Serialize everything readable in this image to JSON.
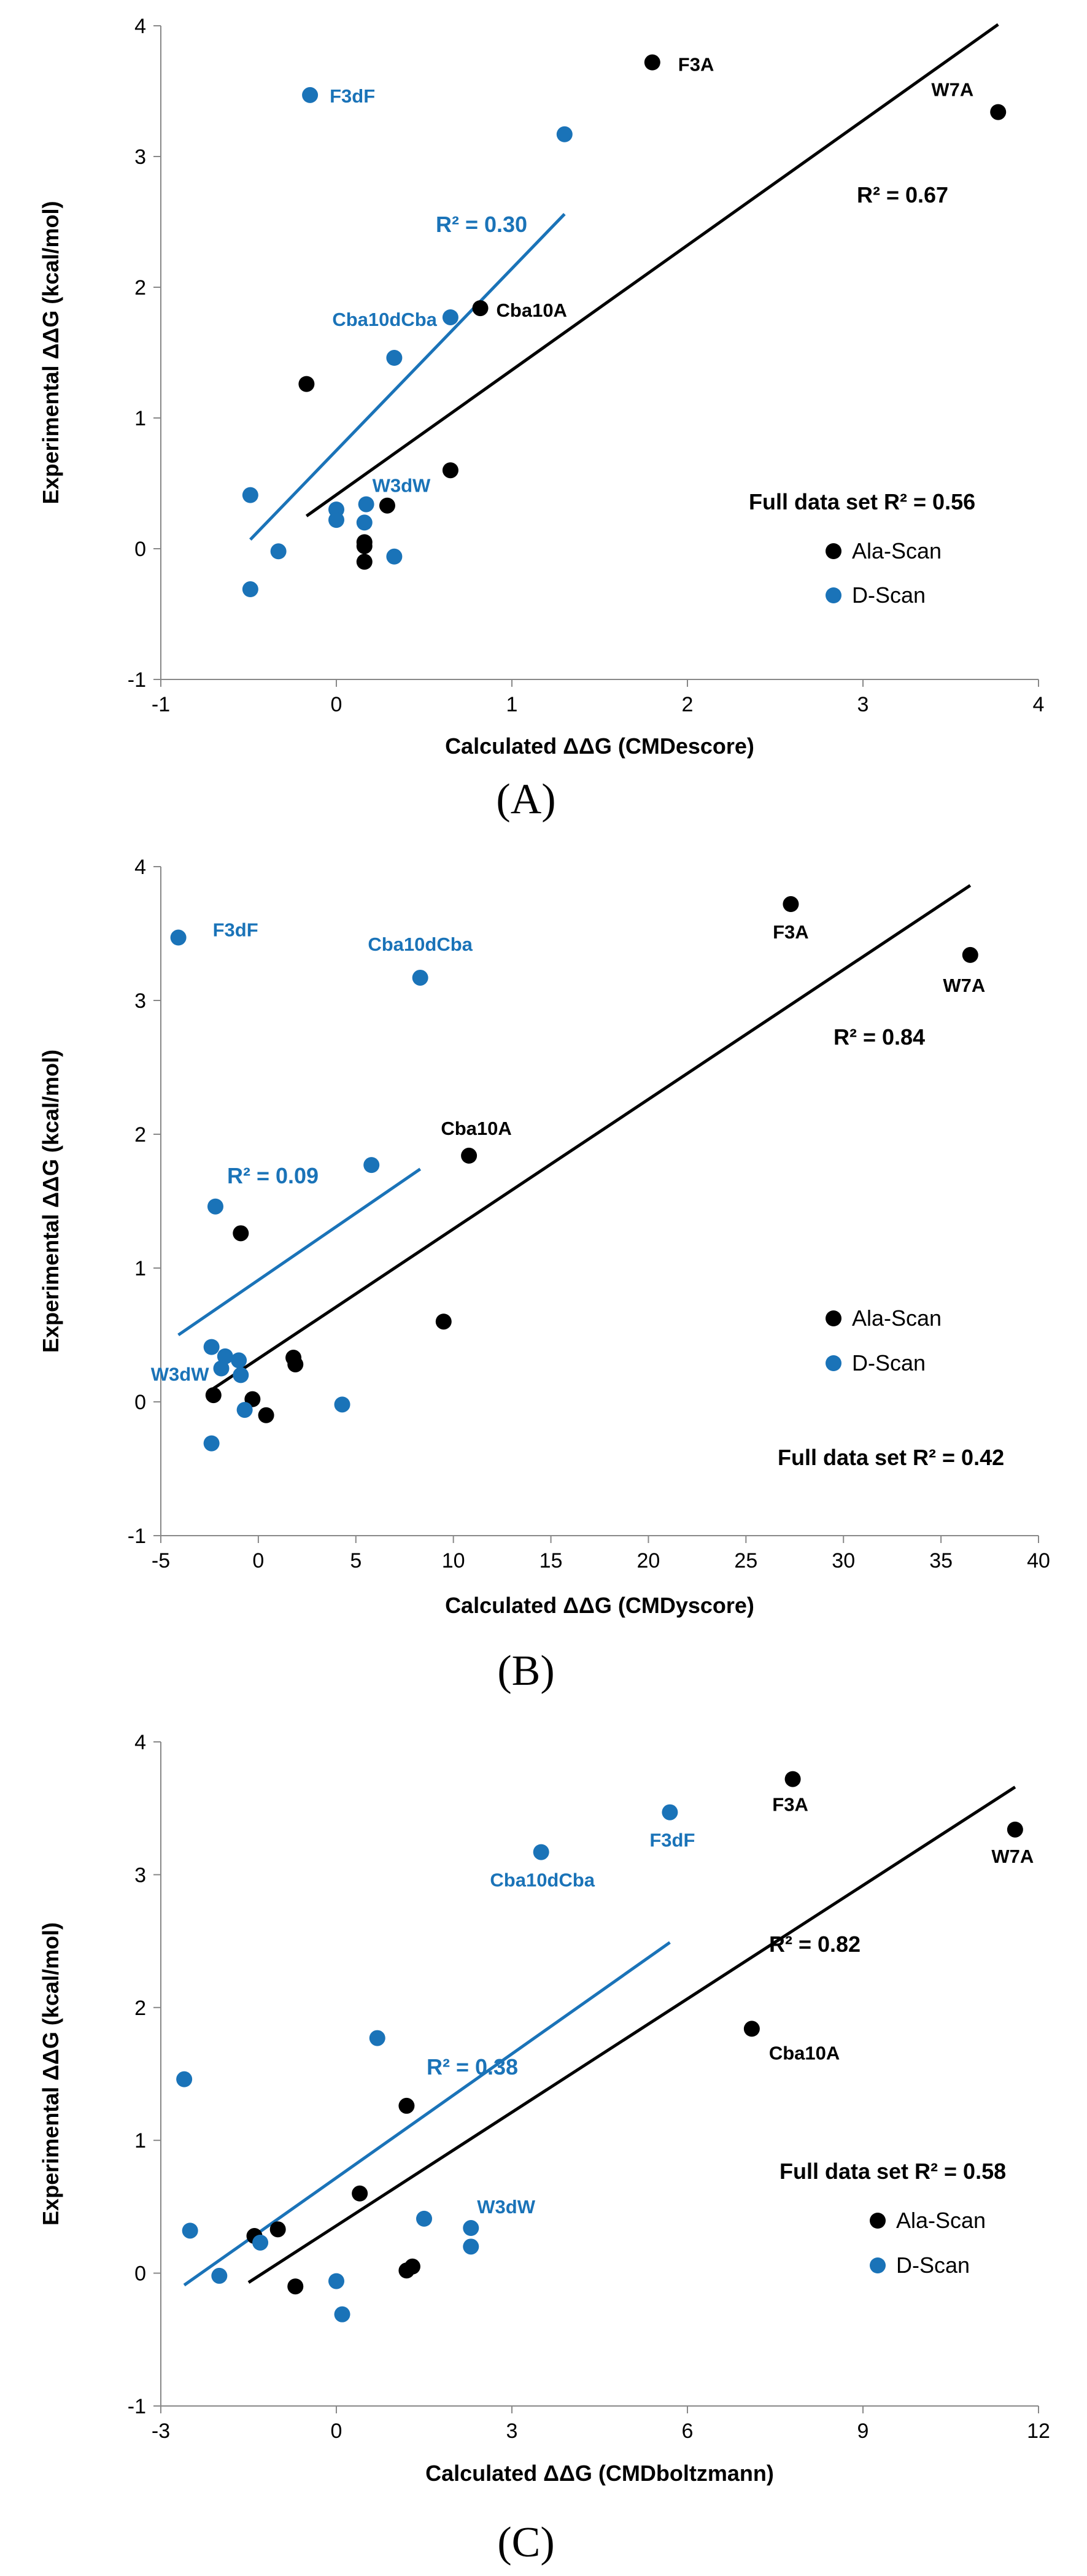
{
  "colors": {
    "ala": "#000000",
    "d": "#1a73b8"
  },
  "legend": {
    "ala": "Ala-Scan",
    "d": "D-Scan"
  },
  "chart_data": [
    {
      "type": "scatter",
      "panel": "(A)",
      "xlabel": "Calculated ΔΔG (CMDescore)",
      "ylabel": "Experimental ΔΔG (kcal/mol)",
      "xlim": [
        -1,
        4
      ],
      "ylim": [
        -1,
        4
      ],
      "xticks": [
        -1,
        0,
        1,
        2,
        3,
        4
      ],
      "yticks": [
        -1,
        0,
        1,
        2,
        3,
        4
      ],
      "full_text": "Full data set  R² =  0.56",
      "series": [
        {
          "name": "Ala-Scan",
          "color_key": "ala",
          "points": [
            [
              1.8,
              3.72
            ],
            [
              3.77,
              3.34
            ],
            [
              0.82,
              1.84
            ],
            [
              -0.17,
              1.26
            ],
            [
              0.65,
              0.6
            ],
            [
              0.29,
              0.33
            ],
            [
              0.16,
              0.05
            ],
            [
              0.16,
              0.02
            ],
            [
              0.16,
              -0.1
            ]
          ],
          "fit": {
            "x": [
              -0.17,
              3.77
            ],
            "y": [
              0.25,
              4.01
            ],
            "r2_text": "R² = 0.67"
          }
        },
        {
          "name": "D-Scan",
          "color_key": "d",
          "points": [
            [
              -0.15,
              3.47
            ],
            [
              1.3,
              3.17
            ],
            [
              0.65,
              1.77
            ],
            [
              0.33,
              1.46
            ],
            [
              -0.49,
              0.41
            ],
            [
              0.0,
              0.3
            ],
            [
              0.0,
              0.22
            ],
            [
              0.17,
              0.34
            ],
            [
              0.16,
              0.2
            ],
            [
              -0.33,
              -0.02
            ],
            [
              0.33,
              -0.06
            ],
            [
              -0.49,
              -0.31
            ]
          ],
          "fit": {
            "x": [
              -0.49,
              1.3
            ],
            "y": [
              0.07,
              2.56
            ],
            "r2_text": "R² = 0.30"
          }
        }
      ],
      "annotations": [
        {
          "text": "F3A",
          "x": 1.8,
          "y": 3.72,
          "color_key": "ala"
        },
        {
          "text": "W7A",
          "x": 3.77,
          "y": 3.34,
          "color_key": "ala"
        },
        {
          "text": "Cba10A",
          "x": 0.82,
          "y": 1.84,
          "color_key": "ala"
        },
        {
          "text": "F3dF",
          "x": -0.15,
          "y": 3.47,
          "color_key": "d"
        },
        {
          "text": "Cba10dCba",
          "x": 0.65,
          "y": 1.77,
          "color_key": "d"
        },
        {
          "text": "W3dW",
          "x": 0.17,
          "y": 0.34,
          "color_key": "d"
        }
      ]
    },
    {
      "type": "scatter",
      "panel": "(B)",
      "xlabel": "Calculated ΔΔG (CMDyscore)",
      "ylabel": "Experimental ΔΔG (kcal/mol)",
      "xlim": [
        -5,
        40
      ],
      "ylim": [
        -1,
        4
      ],
      "xticks": [
        -5,
        0,
        5,
        10,
        15,
        20,
        25,
        30,
        35,
        40
      ],
      "yticks": [
        -1,
        0,
        1,
        2,
        3,
        4
      ],
      "full_text": "Full data set  R² =  0.42",
      "series": [
        {
          "name": "Ala-Scan",
          "color_key": "ala",
          "points": [
            [
              27.3,
              3.72
            ],
            [
              36.5,
              3.34
            ],
            [
              10.8,
              1.84
            ],
            [
              -0.9,
              1.26
            ],
            [
              9.5,
              0.6
            ],
            [
              1.8,
              0.33
            ],
            [
              1.9,
              0.28
            ],
            [
              -0.3,
              0.02
            ],
            [
              -2.3,
              0.05
            ],
            [
              0.4,
              -0.1
            ]
          ],
          "fit": {
            "x": [
              -2.3,
              36.5
            ],
            "y": [
              0.1,
              3.86
            ],
            "r2_text": "R² = 0.84"
          }
        },
        {
          "name": "D-Scan",
          "color_key": "d",
          "points": [
            [
              -4.1,
              3.47
            ],
            [
              8.3,
              3.17
            ],
            [
              5.8,
              1.77
            ],
            [
              -2.2,
              1.46
            ],
            [
              -2.4,
              0.41
            ],
            [
              -1.7,
              0.34
            ],
            [
              -1.0,
              0.31
            ],
            [
              -1.9,
              0.25
            ],
            [
              -0.9,
              0.2
            ],
            [
              -0.7,
              -0.06
            ],
            [
              4.3,
              -0.02
            ],
            [
              -2.4,
              -0.31
            ]
          ],
          "fit": {
            "x": [
              -4.1,
              8.3
            ],
            "y": [
              0.5,
              1.74
            ],
            "r2_text": "R² = 0.09"
          }
        }
      ],
      "annotations": [
        {
          "text": "F3A",
          "x": 27.3,
          "y": 3.72,
          "color_key": "ala"
        },
        {
          "text": "W7A",
          "x": 36.5,
          "y": 3.34,
          "color_key": "ala"
        },
        {
          "text": "Cba10A",
          "x": 10.8,
          "y": 1.84,
          "color_key": "ala"
        },
        {
          "text": "F3dF",
          "x": -4.1,
          "y": 3.47,
          "color_key": "d"
        },
        {
          "text": "Cba10dCba",
          "x": 8.3,
          "y": 3.17,
          "color_key": "d"
        },
        {
          "text": "W3dW",
          "x": -1.9,
          "y": 0.25,
          "color_key": "d"
        }
      ]
    },
    {
      "type": "scatter",
      "panel": "(C)",
      "xlabel": "Calculated ΔΔG (CMDboltzmann)",
      "ylabel": "Experimental ΔΔG (kcal/mol)",
      "xlim": [
        -3,
        12
      ],
      "ylim": [
        -1,
        4
      ],
      "xticks": [
        -3,
        0,
        3,
        6,
        9,
        12
      ],
      "yticks": [
        -1,
        0,
        1,
        2,
        3,
        4
      ],
      "full_text": "Full data set  R² =  0.58",
      "series": [
        {
          "name": "Ala-Scan",
          "color_key": "ala",
          "points": [
            [
              7.8,
              3.72
            ],
            [
              11.6,
              3.34
            ],
            [
              7.1,
              1.84
            ],
            [
              1.2,
              1.26
            ],
            [
              0.4,
              0.6
            ],
            [
              -1.0,
              0.33
            ],
            [
              -1.4,
              0.28
            ],
            [
              1.3,
              0.05
            ],
            [
              1.2,
              0.02
            ],
            [
              -0.7,
              -0.1
            ]
          ],
          "fit": {
            "x": [
              -1.5,
              11.6
            ],
            "y": [
              -0.07,
              3.66
            ],
            "r2_text": "R² = 0.82"
          }
        },
        {
          "name": "D-Scan",
          "color_key": "d",
          "points": [
            [
              5.7,
              3.47
            ],
            [
              3.5,
              3.17
            ],
            [
              0.7,
              1.77
            ],
            [
              -2.6,
              1.46
            ],
            [
              1.5,
              0.41
            ],
            [
              2.3,
              0.34
            ],
            [
              -2.5,
              0.32
            ],
            [
              -1.3,
              0.23
            ],
            [
              2.3,
              0.2
            ],
            [
              -2.0,
              -0.02
            ],
            [
              0.0,
              -0.06
            ],
            [
              0.1,
              -0.31
            ]
          ],
          "fit": {
            "x": [
              -2.6,
              5.7
            ],
            "y": [
              -0.09,
              2.49
            ],
            "r2_text": "R² = 0.38"
          }
        }
      ],
      "annotations": [
        {
          "text": "F3A",
          "x": 7.8,
          "y": 3.72,
          "color_key": "ala"
        },
        {
          "text": "W7A",
          "x": 11.6,
          "y": 3.34,
          "color_key": "ala"
        },
        {
          "text": "Cba10A",
          "x": 7.1,
          "y": 1.84,
          "color_key": "ala"
        },
        {
          "text": "F3dF",
          "x": 5.7,
          "y": 3.47,
          "color_key": "d"
        },
        {
          "text": "Cba10dCba",
          "x": 3.5,
          "y": 3.17,
          "color_key": "d"
        },
        {
          "text": "W3dW",
          "x": 2.3,
          "y": 0.34,
          "color_key": "d"
        }
      ]
    }
  ]
}
